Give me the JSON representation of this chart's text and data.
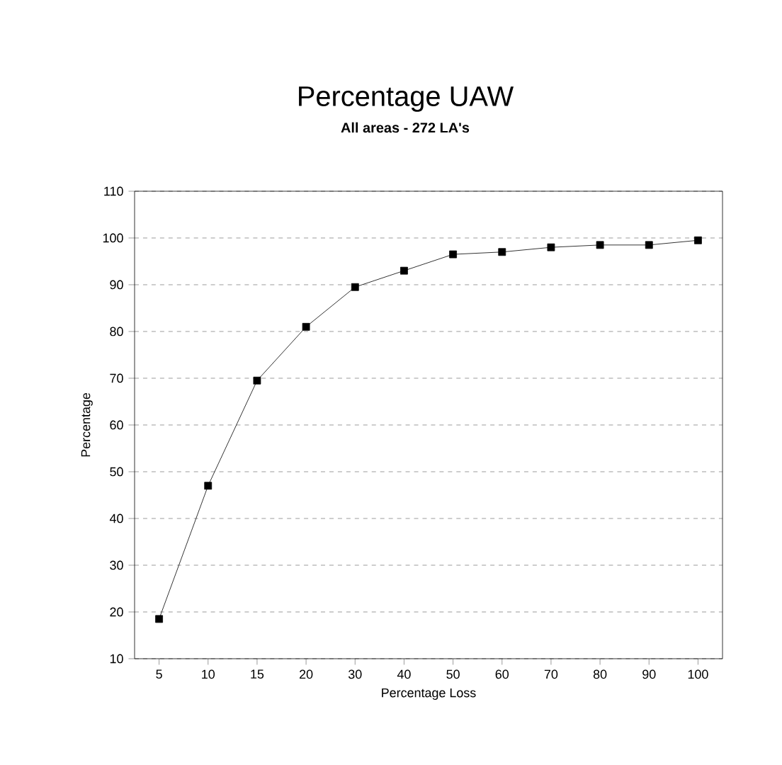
{
  "chart_data": {
    "type": "line",
    "title": "Percentage UAW",
    "subtitle": "All areas - 272 LA's",
    "xlabel": "Percentage Loss",
    "ylabel": "Percentage",
    "categories": [
      "5",
      "10",
      "15",
      "20",
      "30",
      "40",
      "50",
      "60",
      "70",
      "80",
      "90",
      "100"
    ],
    "series": [
      {
        "color": "#000000",
        "values": [
          18.5,
          47,
          69.5,
          81,
          89.5,
          93,
          96.5,
          97,
          98,
          98.5,
          98.5,
          99.5
        ]
      }
    ],
    "ylim": [
      10,
      110
    ],
    "yticks": [
      10,
      20,
      30,
      40,
      50,
      60,
      70,
      80,
      90,
      100,
      110
    ],
    "grid": "y",
    "marker": "square",
    "line_style": "solid"
  }
}
